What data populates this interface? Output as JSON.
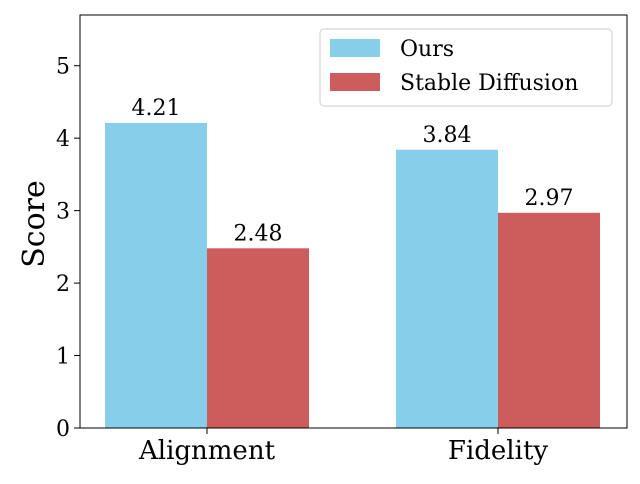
{
  "chart_data": {
    "type": "bar",
    "categories": [
      "Alignment",
      "Fidelity"
    ],
    "series": [
      {
        "name": "Ours",
        "values": [
          4.21,
          3.84
        ],
        "color": "#87CEEB"
      },
      {
        "name": "Stable Diffusion",
        "values": [
          2.48,
          2.97
        ],
        "color": "#CD5C5C"
      }
    ],
    "data_labels": [
      [
        "4.21",
        "3.84"
      ],
      [
        "2.48",
        "2.97"
      ]
    ],
    "xlabel": "",
    "ylabel": "Score",
    "ylim": [
      0,
      5.7
    ],
    "yticks": [
      0,
      1,
      2,
      3,
      4,
      5
    ],
    "legend_position": "top-right",
    "grid": false
  }
}
